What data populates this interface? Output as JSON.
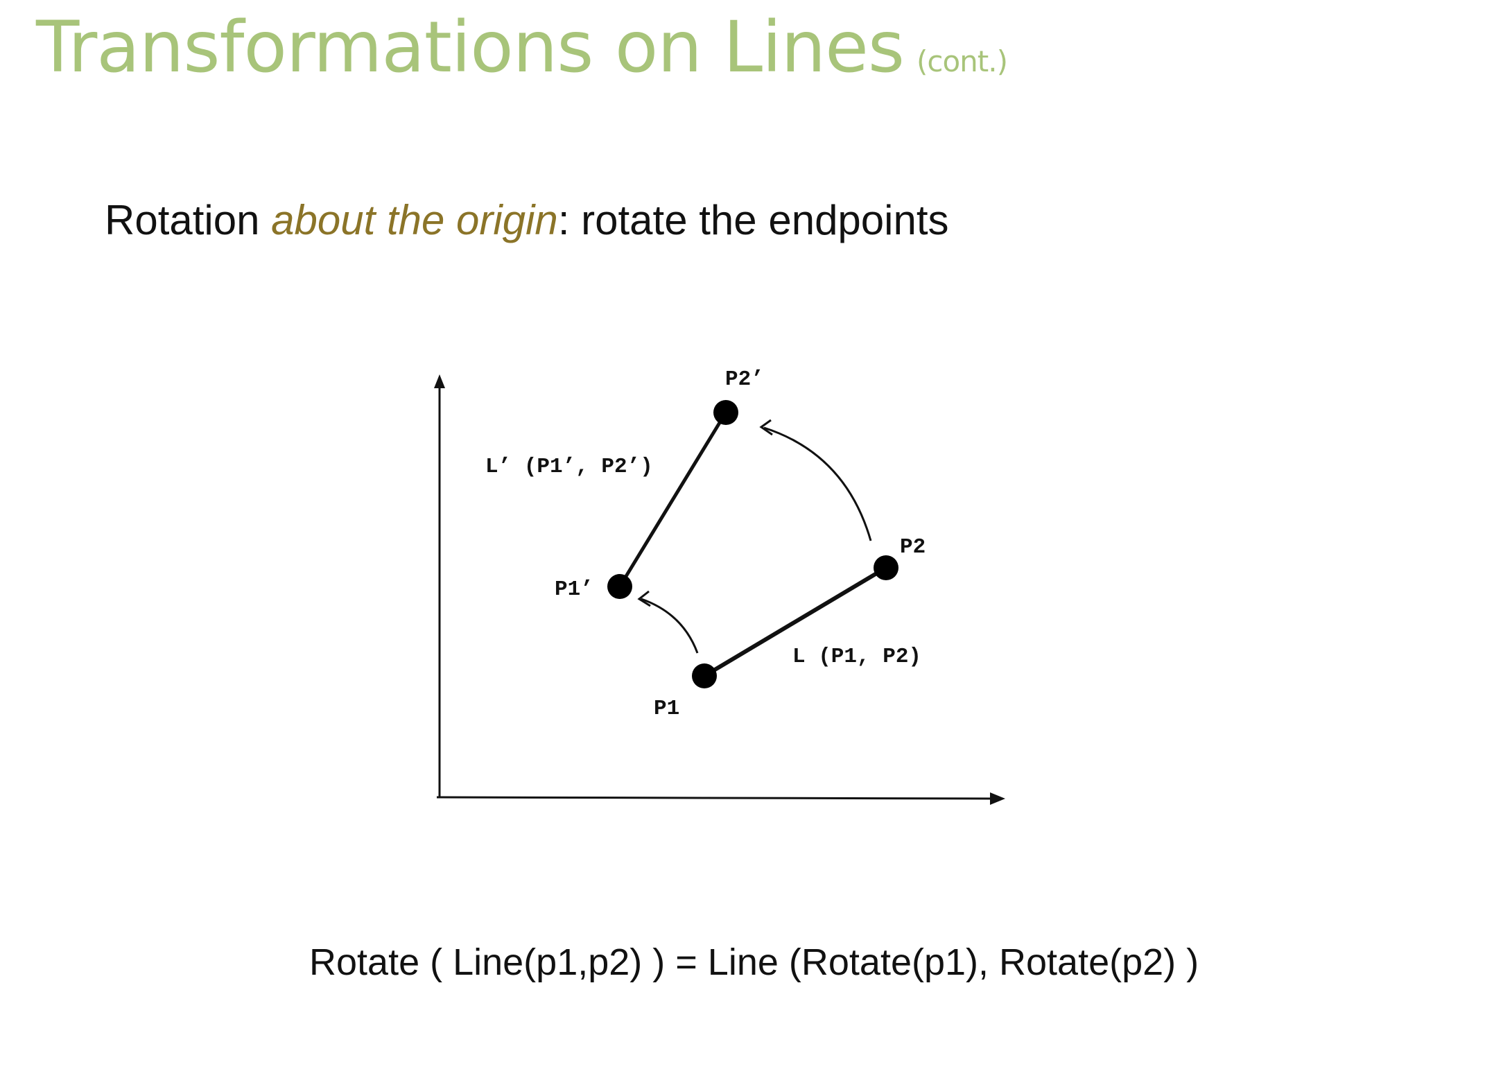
{
  "slide": {
    "title": "Transformations on Lines",
    "title_suffix": "(cont.)",
    "subtitle_prefix": "Rotation ",
    "subtitle_emphasis": "about the origin",
    "subtitle_suffix": ": rotate the endpoints",
    "formula": "Rotate ( Line(p1,p2) ) = Line (Rotate(p1), Rotate(p2) )"
  },
  "diagram": {
    "labels": {
      "p1": "P1",
      "p2": "P2",
      "p1_prime": "P1’",
      "p2_prime": "P2’",
      "line_original": "L (P1, P2)",
      "line_rotated": "L’ (P1’, P2’)"
    }
  },
  "colors": {
    "title": "#a8c47a",
    "emphasis": "#8b7428",
    "text": "#111111"
  }
}
